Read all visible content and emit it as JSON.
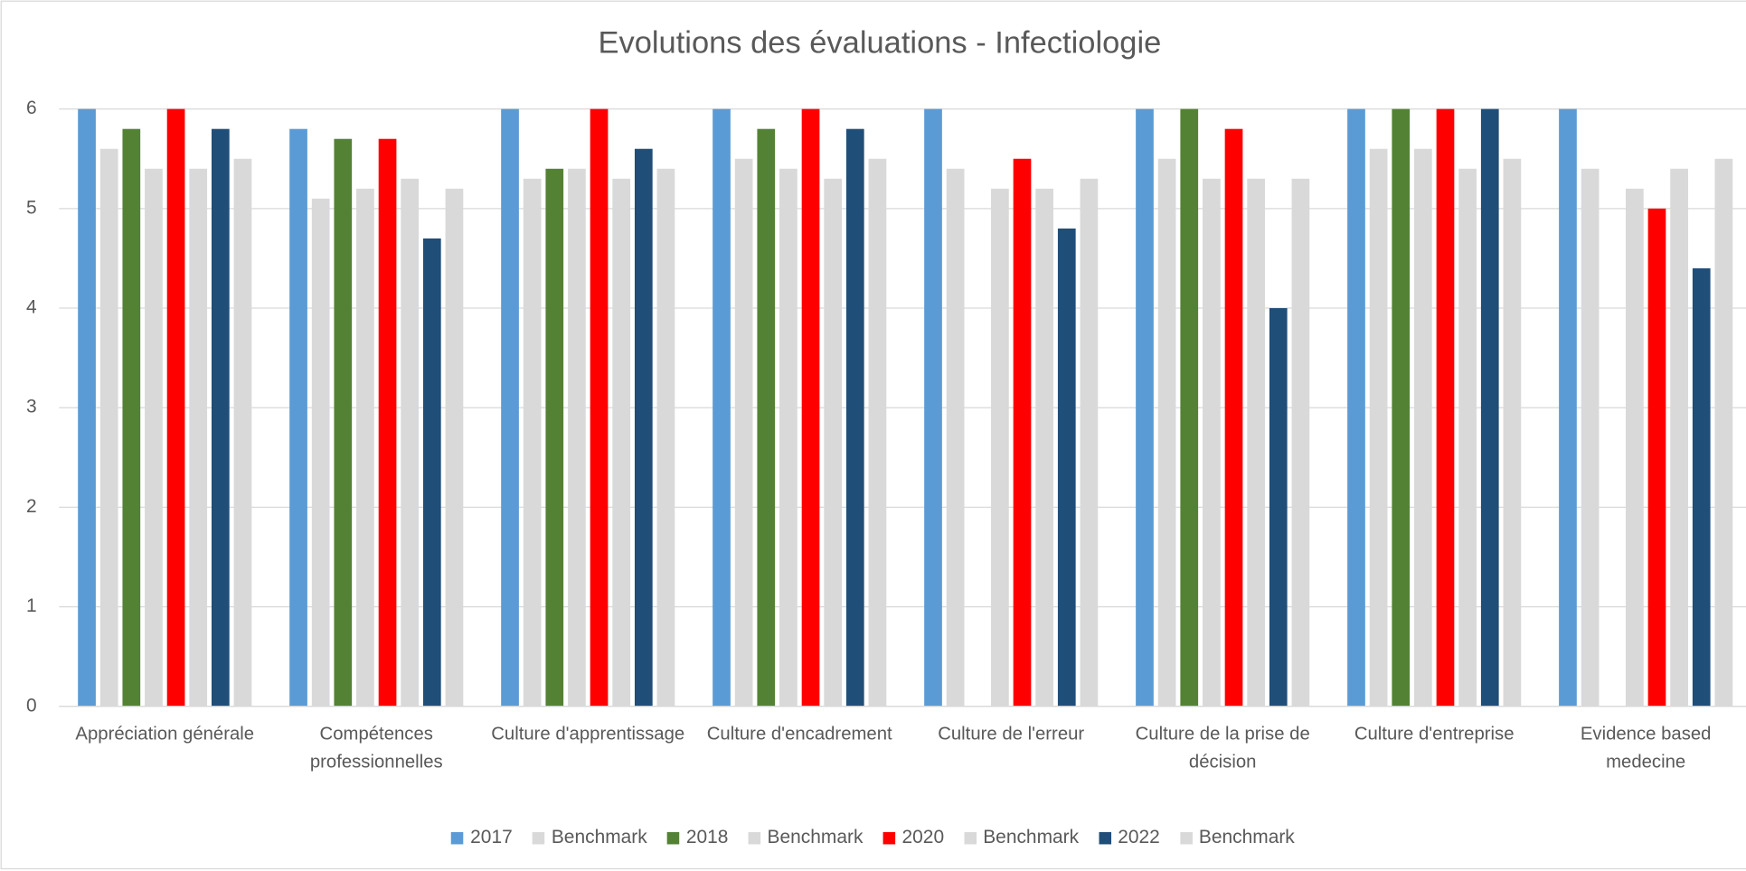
{
  "chart_data": {
    "type": "bar",
    "title": "Evolutions des évaluations - Infectiologie",
    "categories": [
      "Appréciation générale",
      "Compétences professionnelles",
      "Culture d'apprentissage",
      "Culture d'encadrement",
      "Culture de l'erreur",
      "Culture de la prise de décision",
      "Culture d'entreprise",
      "Evidence based medecine"
    ],
    "series": [
      {
        "name": "2017",
        "color": "#5b9bd5",
        "values": [
          6,
          5.8,
          6,
          6,
          6,
          6,
          6,
          6
        ]
      },
      {
        "name": "Benchmark",
        "color": "#d9d9d9",
        "values": [
          5.6,
          5.1,
          5.3,
          5.5,
          5.4,
          5.5,
          5.6,
          5.4
        ]
      },
      {
        "name": "2018",
        "color": "#548235",
        "values": [
          5.8,
          5.7,
          5.4,
          5.8,
          null,
          6,
          6,
          null
        ]
      },
      {
        "name": "Benchmark",
        "color": "#d9d9d9",
        "values": [
          5.4,
          5.2,
          5.4,
          5.4,
          5.2,
          5.3,
          5.6,
          5.2
        ]
      },
      {
        "name": "2020",
        "color": "#ff0000",
        "values": [
          6,
          5.7,
          6,
          6,
          5.5,
          5.8,
          6,
          5.0
        ]
      },
      {
        "name": "Benchmark",
        "color": "#d9d9d9",
        "values": [
          5.4,
          5.3,
          5.3,
          5.3,
          5.2,
          5.3,
          5.4,
          5.4
        ]
      },
      {
        "name": "2022",
        "color": "#1f4e79",
        "values": [
          5.8,
          4.7,
          5.6,
          5.8,
          4.8,
          4.0,
          6,
          4.4
        ]
      },
      {
        "name": "Benchmark",
        "color": "#d9d9d9",
        "values": [
          5.5,
          5.2,
          5.4,
          5.5,
          5.3,
          5.3,
          5.5,
          5.5
        ]
      }
    ],
    "ylim": [
      0,
      6
    ],
    "yticks": [
      0,
      1,
      2,
      3,
      4,
      5,
      6
    ],
    "grid": true,
    "legend": "bottom"
  }
}
